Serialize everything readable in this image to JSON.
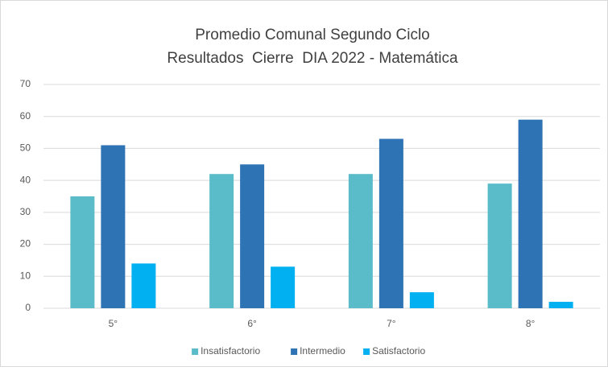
{
  "chart_data": {
    "type": "bar",
    "title": "Promedio Comunal Segundo Ciclo",
    "subtitle": "Resultados  Cierre  DIA 2022 - Matemática",
    "categories": [
      "5°",
      "6°",
      "7°",
      "8°"
    ],
    "series": [
      {
        "name": "Insatisfactorio",
        "color": "#5bbcc9",
        "values": [
          35,
          42,
          42,
          39
        ]
      },
      {
        "name": "Intermedio",
        "color": "#2e74b5",
        "values": [
          51,
          45,
          53,
          59
        ]
      },
      {
        "name": "Satisfactorio",
        "color": "#00b0f0",
        "values": [
          14,
          13,
          5,
          2
        ]
      }
    ],
    "ylim": [
      0,
      70
    ],
    "yticks": [
      0,
      10,
      20,
      30,
      40,
      50,
      60,
      70
    ],
    "grid": true,
    "legend": "bottom"
  }
}
